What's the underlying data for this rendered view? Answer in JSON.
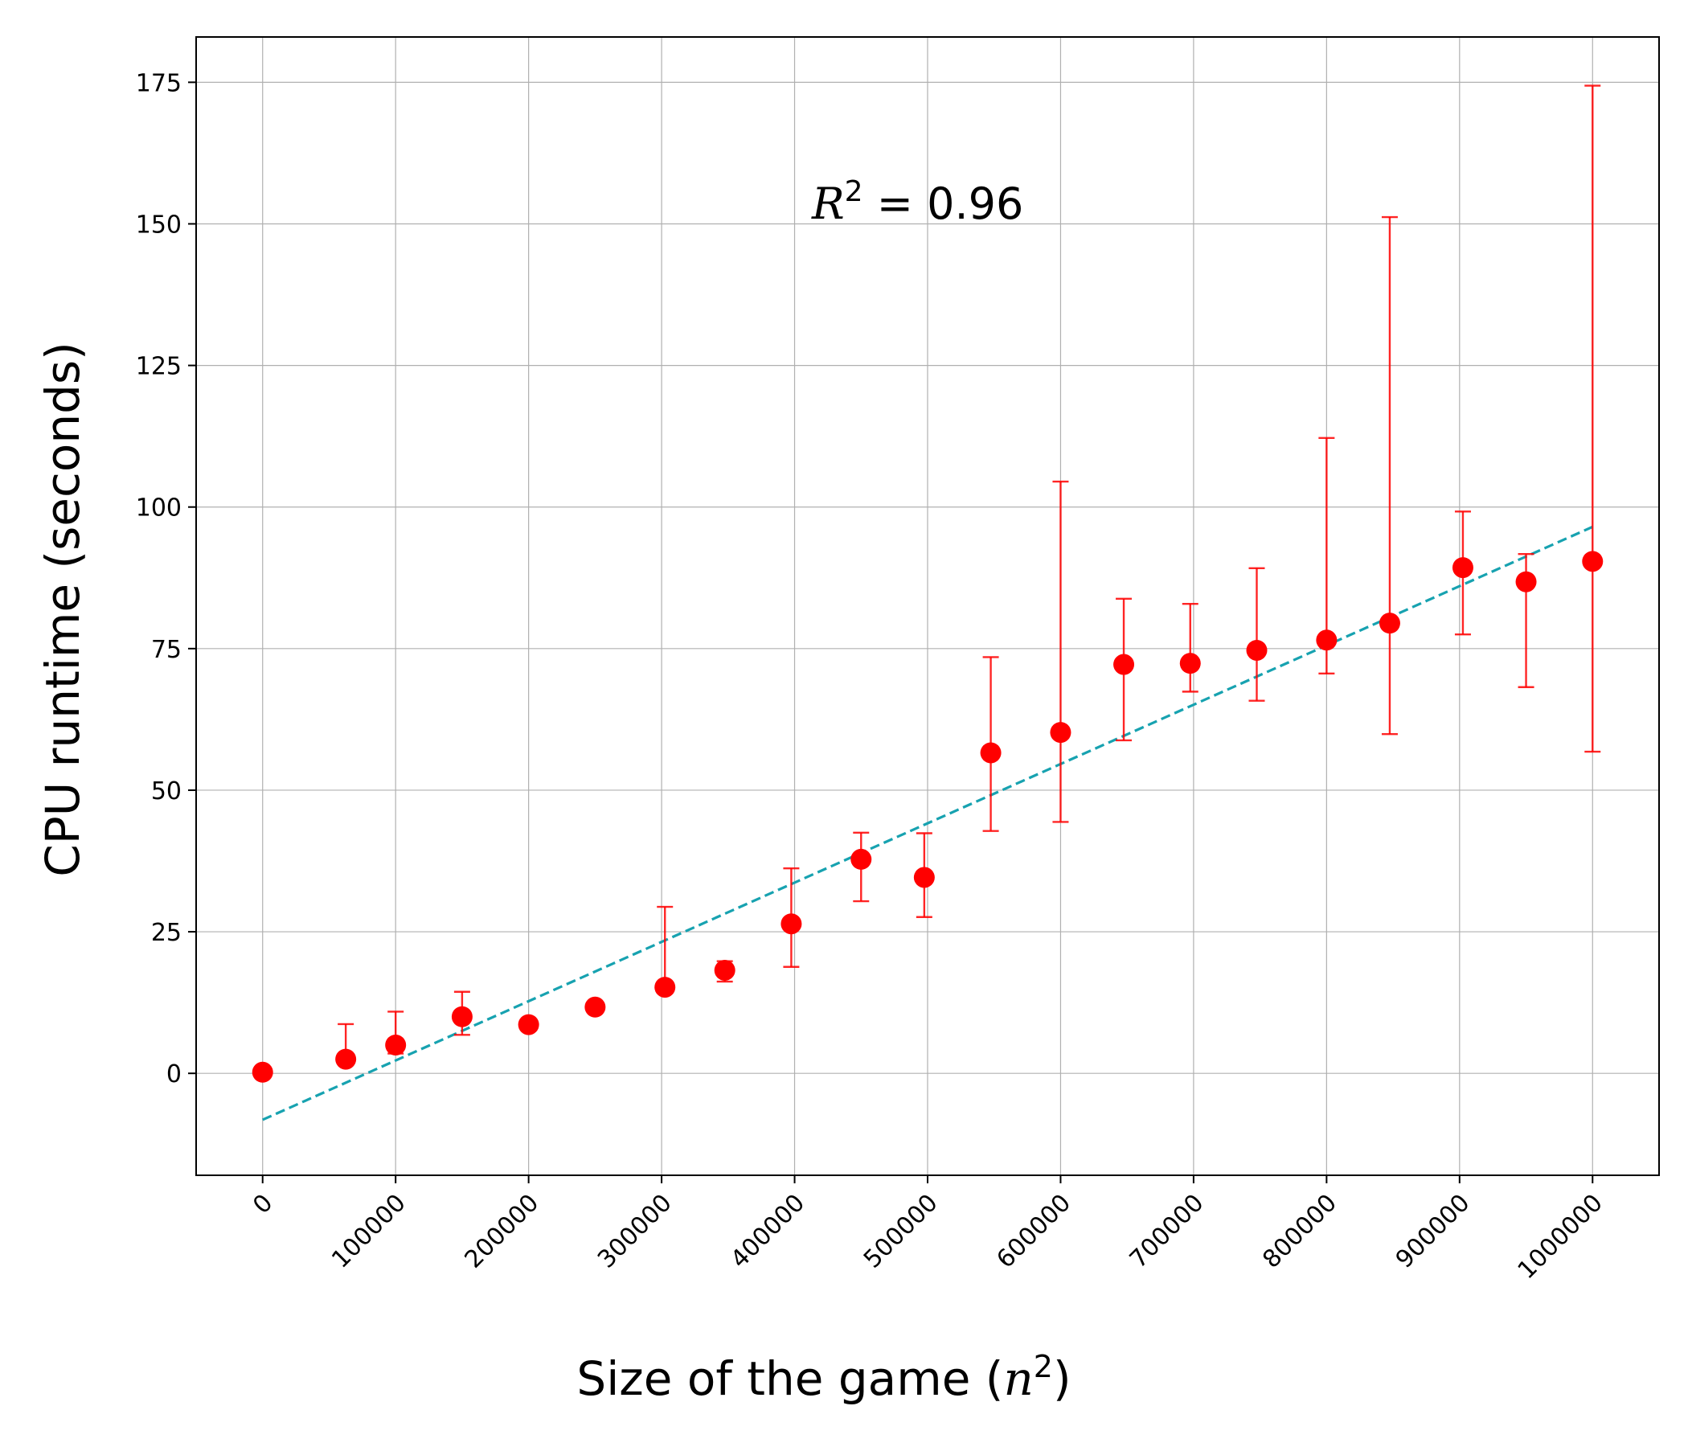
{
  "chart_data": {
    "type": "scatter",
    "xlabel": "Size of the game (",
    "xlabel_var": "n",
    "xlabel_exp": "2",
    "xlabel_end": ")",
    "ylabel": "CPU runtime (seconds)",
    "annotation": {
      "var": "R",
      "exp": "2",
      "text": " = 0.96"
    },
    "xlim": [
      -50000,
      1050000
    ],
    "ylim": [
      -18,
      183
    ],
    "x_ticks": [
      0,
      100000,
      200000,
      300000,
      400000,
      500000,
      600000,
      700000,
      800000,
      900000,
      1000000
    ],
    "x_tick_labels": [
      "0",
      "100000",
      "200000",
      "300000",
      "400000",
      "500000",
      "600000",
      "700000",
      "800000",
      "900000",
      "1000000"
    ],
    "y_ticks": [
      0,
      25,
      50,
      75,
      100,
      125,
      150,
      175
    ],
    "y_tick_labels": [
      "0",
      "25",
      "50",
      "75",
      "100",
      "125",
      "150",
      "175"
    ],
    "grid": true,
    "series": [
      {
        "marker": "circle",
        "color": "#ff0000",
        "points": [
          {
            "x": 0,
            "y": 0.2,
            "lo": 0.2,
            "hi": 0.2
          },
          {
            "x": 62500,
            "y": 2.5,
            "lo": 1.5,
            "hi": 8.7
          },
          {
            "x": 100000,
            "y": 5.0,
            "lo": 3.5,
            "hi": 10.9
          },
          {
            "x": 150000,
            "y": 10.0,
            "lo": 6.8,
            "hi": 14.4
          },
          {
            "x": 200000,
            "y": 8.6,
            "lo": 7.9,
            "hi": 9.3
          },
          {
            "x": 250000,
            "y": 11.7,
            "lo": 11.2,
            "hi": 12.2
          },
          {
            "x": 302500,
            "y": 15.2,
            "lo": 15.2,
            "hi": 29.4
          },
          {
            "x": 347500,
            "y": 18.2,
            "lo": 16.2,
            "hi": 19.8
          },
          {
            "x": 397500,
            "y": 26.4,
            "lo": 18.8,
            "hi": 36.2
          },
          {
            "x": 450000,
            "y": 37.8,
            "lo": 30.4,
            "hi": 42.5
          },
          {
            "x": 497500,
            "y": 34.6,
            "lo": 27.6,
            "hi": 42.4
          },
          {
            "x": 547500,
            "y": 56.6,
            "lo": 42.8,
            "hi": 73.5
          },
          {
            "x": 600000,
            "y": 60.2,
            "lo": 44.4,
            "hi": 104.5
          },
          {
            "x": 647500,
            "y": 72.2,
            "lo": 58.8,
            "hi": 83.8
          },
          {
            "x": 697500,
            "y": 72.4,
            "lo": 67.4,
            "hi": 82.9
          },
          {
            "x": 747500,
            "y": 74.7,
            "lo": 65.8,
            "hi": 89.2
          },
          {
            "x": 800000,
            "y": 76.5,
            "lo": 70.6,
            "hi": 112.2
          },
          {
            "x": 847500,
            "y": 79.5,
            "lo": 59.9,
            "hi": 151.2
          },
          {
            "x": 902500,
            "y": 89.3,
            "lo": 77.5,
            "hi": 99.2
          },
          {
            "x": 950000,
            "y": 86.8,
            "lo": 68.2,
            "hi": 91.7
          },
          {
            "x": 1000000,
            "y": 90.4,
            "lo": 56.8,
            "hi": 174.4
          }
        ]
      },
      {
        "type": "fit_line",
        "style": "dashed",
        "color": "#17a2b0",
        "x": [
          0,
          1000000
        ],
        "y": [
          -8.2,
          96.5
        ]
      }
    ]
  }
}
